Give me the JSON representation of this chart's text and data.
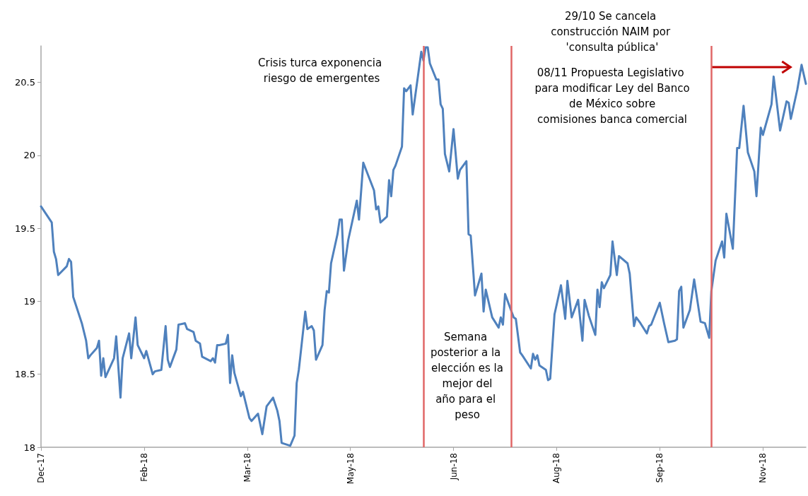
{
  "chart_data": {
    "type": "line",
    "x": [
      "2017-12-15",
      "2017-12-20",
      "2017-12-21",
      "2017-12-22",
      "2017-12-23",
      "2017-12-27",
      "2017-12-28",
      "2017-12-29",
      "2017-12-30",
      "2018-01-03",
      "2018-01-05",
      "2018-01-06",
      "2018-01-07",
      "2018-01-10",
      "2018-01-11",
      "2018-01-12",
      "2018-01-13",
      "2018-01-14",
      "2018-01-18",
      "2018-01-19",
      "2018-01-21",
      "2018-01-22",
      "2018-01-25",
      "2018-01-26",
      "2018-01-28",
      "2018-01-29",
      "2018-02-01",
      "2018-02-02",
      "2018-02-05",
      "2018-02-06",
      "2018-02-09",
      "2018-02-11",
      "2018-02-12",
      "2018-02-13",
      "2018-02-16",
      "2018-02-17",
      "2018-02-20",
      "2018-02-21",
      "2018-02-24",
      "2018-02-25",
      "2018-02-27",
      "2018-02-28",
      "2018-03-04",
      "2018-03-05",
      "2018-03-06",
      "2018-03-07",
      "2018-03-08",
      "2018-03-11",
      "2018-03-12",
      "2018-03-13",
      "2018-03-14",
      "2018-03-15",
      "2018-03-18",
      "2018-03-19",
      "2018-03-22",
      "2018-03-23",
      "2018-03-26",
      "2018-03-28",
      "2018-03-30",
      "2018-04-02",
      "2018-04-04",
      "2018-04-05",
      "2018-04-06",
      "2018-04-10",
      "2018-04-12",
      "2018-04-13",
      "2018-04-14",
      "2018-04-17",
      "2018-04-18",
      "2018-04-20",
      "2018-04-21",
      "2018-04-22",
      "2018-04-25",
      "2018-04-26",
      "2018-04-27",
      "2018-04-28",
      "2018-04-29",
      "2018-05-02",
      "2018-05-03",
      "2018-05-04",
      "2018-05-05",
      "2018-05-07",
      "2018-05-11",
      "2018-05-12",
      "2018-05-14",
      "2018-05-19",
      "2018-05-20",
      "2018-05-21",
      "2018-05-22",
      "2018-05-25",
      "2018-05-26",
      "2018-05-27",
      "2018-05-28",
      "2018-05-29",
      "2018-06-01",
      "2018-06-02",
      "2018-06-03",
      "2018-06-05",
      "2018-06-06",
      "2018-06-10",
      "2018-06-11",
      "2018-06-12",
      "2018-06-13",
      "2018-06-14",
      "2018-06-17",
      "2018-06-18",
      "2018-06-19",
      "2018-06-20",
      "2018-06-21",
      "2018-06-23",
      "2018-06-25",
      "2018-06-27",
      "2018-06-28",
      "2018-07-01",
      "2018-07-02",
      "2018-07-03",
      "2018-07-05",
      "2018-07-08",
      "2018-07-09",
      "2018-07-10",
      "2018-07-13",
      "2018-07-16",
      "2018-07-17",
      "2018-07-18",
      "2018-07-19",
      "2018-07-21",
      "2018-07-23",
      "2018-07-24",
      "2018-07-26",
      "2018-07-27",
      "2018-07-31",
      "2018-08-01",
      "2018-08-02",
      "2018-08-03",
      "2018-08-04",
      "2018-08-07",
      "2018-08-08",
      "2018-08-09",
      "2018-08-11",
      "2018-08-14",
      "2018-08-16",
      "2018-08-17",
      "2018-08-19",
      "2018-08-22",
      "2018-08-24",
      "2018-08-25",
      "2018-08-27",
      "2018-08-30",
      "2018-08-31",
      "2018-09-01",
      "2018-09-02",
      "2018-09-03",
      "2018-09-06",
      "2018-09-07",
      "2018-09-09",
      "2018-09-10",
      "2018-09-14",
      "2018-09-15",
      "2018-09-17",
      "2018-09-18",
      "2018-09-20",
      "2018-09-23",
      "2018-09-24",
      "2018-09-25",
      "2018-09-29",
      "2018-10-01",
      "2018-10-03",
      "2018-10-06",
      "2018-10-07",
      "2018-10-08",
      "2018-10-09",
      "2018-10-10",
      "2018-10-13",
      "2018-10-15",
      "2018-10-18",
      "2018-10-20",
      "2018-10-22",
      "2018-10-23",
      "2018-10-25",
      "2018-10-28",
      "2018-10-29",
      "2018-10-30",
      "2018-11-02",
      "2018-11-04",
      "2018-11-05",
      "2018-11-07",
      "2018-11-09",
      "2018-11-12",
      "2018-11-13",
      "2018-11-15",
      "2018-11-16",
      "2018-11-20",
      "2018-11-21",
      "2018-11-24",
      "2018-11-27",
      "2018-11-28",
      "2018-11-29",
      "2018-12-02",
      "2018-12-04",
      "2018-12-06"
    ],
    "series": [
      {
        "color": "#4f81bd",
        "values": [
          19.65,
          19.54,
          19.34,
          19.29,
          19.18,
          19.24,
          19.29,
          19.27,
          19.03,
          18.85,
          18.73,
          18.61,
          18.63,
          18.68,
          18.73,
          18.49,
          18.61,
          18.48,
          18.61,
          18.76,
          18.34,
          18.61,
          18.78,
          18.61,
          18.89,
          18.7,
          18.61,
          18.66,
          18.5,
          18.52,
          18.53,
          18.83,
          18.6,
          18.55,
          18.67,
          18.84,
          18.85,
          18.81,
          18.79,
          18.73,
          18.71,
          18.62,
          18.59,
          18.61,
          18.58,
          18.7,
          18.7,
          18.71,
          18.77,
          18.44,
          18.63,
          18.51,
          18.35,
          18.38,
          18.2,
          18.18,
          18.23,
          18.09,
          18.28,
          18.34,
          18.25,
          18.18,
          18.03,
          18.01,
          18.08,
          18.44,
          18.53,
          18.93,
          18.81,
          18.83,
          18.8,
          18.6,
          18.7,
          18.94,
          19.07,
          19.06,
          19.26,
          19.46,
          19.56,
          19.56,
          19.21,
          19.42,
          19.69,
          19.56,
          19.95,
          19.76,
          19.63,
          19.65,
          19.54,
          19.58,
          19.83,
          19.72,
          19.9,
          19.93,
          20.06,
          20.46,
          20.44,
          20.48,
          20.28,
          20.71,
          20.65,
          20.74,
          20.74,
          20.63,
          20.52,
          20.52,
          20.35,
          20.32,
          20.01,
          19.89,
          20.18,
          19.84,
          19.9,
          19.96,
          19.46,
          19.45,
          19.04,
          19.19,
          18.93,
          19.08,
          18.89,
          18.82,
          18.89,
          18.84,
          19.05,
          18.97,
          18.89,
          18.88,
          18.65,
          18.63,
          18.54,
          18.64,
          18.6,
          18.63,
          18.56,
          18.53,
          18.46,
          18.47,
          18.91,
          19.11,
          18.88,
          19.14,
          18.89,
          19.01,
          18.73,
          19.01,
          18.9,
          18.77,
          19.08,
          18.96,
          19.13,
          19.09,
          19.18,
          19.41,
          19.18,
          19.31,
          19.26,
          19.19,
          18.83,
          18.89,
          18.85,
          18.78,
          18.83,
          18.84,
          18.99,
          18.85,
          18.72,
          18.73,
          18.74,
          19.07,
          19.1,
          18.82,
          18.94,
          19.15,
          18.86,
          18.85,
          18.75,
          19.07,
          19.28,
          19.41,
          19.3,
          19.6,
          19.36,
          20.05,
          20.05,
          20.34,
          20.02,
          19.89,
          19.72,
          20.19,
          20.14,
          20.35,
          20.54,
          20.17,
          20.37,
          20.36,
          20.25,
          20.45,
          20.62,
          20.49
        ]
      }
    ],
    "xlim": [
      "2017-12-15",
      "2018-12-06"
    ],
    "xticks": [
      {
        "value": "2017-12-15",
        "label": "Dec-17"
      },
      {
        "value": "2018-02-01",
        "label": "Feb-18"
      },
      {
        "value": "2018-03-21",
        "label": "Mar-18"
      },
      {
        "value": "2018-05-08",
        "label": "May-18"
      },
      {
        "value": "2018-06-25",
        "label": "Jun-18"
      },
      {
        "value": "2018-08-12",
        "label": "Aug-18"
      },
      {
        "value": "2018-09-29",
        "label": "Sep-18"
      },
      {
        "value": "2018-11-16",
        "label": "Nov-18"
      }
    ],
    "ylim": [
      18,
      20.75
    ],
    "yticks": [
      18,
      18.5,
      19,
      19.5,
      20,
      20.5
    ],
    "grid": false,
    "marker": "none",
    "line_style": "solid",
    "ref_lines": [
      {
        "axis": "x",
        "value": "2018-06-11",
        "color": "#e06666"
      },
      {
        "axis": "x",
        "value": "2018-07-22",
        "color": "#e06666"
      },
      {
        "axis": "x",
        "value": "2018-10-23",
        "color": "#e06666"
      }
    ],
    "annotations": [
      "Crisis turca exponencia riesgo de emergentes",
      "Semana posterior a la elección es la mejor del año para el peso",
      "29/10 Se cancela construcción NAIM por 'consulta pública'",
      "08/11 Propuesta Legislativo para modificar Ley del Banco de México sobre comisiones banca comercial"
    ]
  }
}
